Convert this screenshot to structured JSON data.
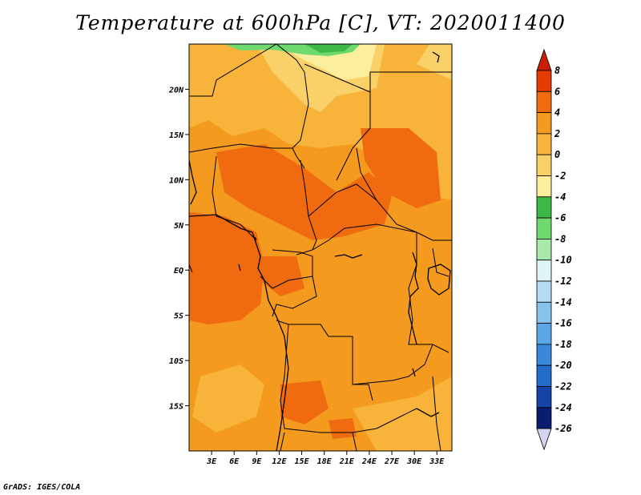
{
  "title": "Temperature at 600hPa [C], VT: 2020011400",
  "credit": "GrADS: IGES/COLA",
  "map": {
    "lon_range": [
      0,
      35
    ],
    "lat_range": [
      -20,
      25
    ],
    "lat_ticks": [
      {
        "value": 20,
        "label": "20N"
      },
      {
        "value": 15,
        "label": "15N"
      },
      {
        "value": 10,
        "label": "10N"
      },
      {
        "value": 5,
        "label": "5N"
      },
      {
        "value": 0,
        "label": "EQ"
      },
      {
        "value": -5,
        "label": "5S"
      },
      {
        "value": -10,
        "label": "10S"
      },
      {
        "value": -15,
        "label": "15S"
      }
    ],
    "lon_ticks": [
      {
        "value": 3,
        "label": "3E"
      },
      {
        "value": 6,
        "label": "6E"
      },
      {
        "value": 9,
        "label": "9E"
      },
      {
        "value": 12,
        "label": "12E"
      },
      {
        "value": 15,
        "label": "15E"
      },
      {
        "value": 18,
        "label": "18E"
      },
      {
        "value": 21,
        "label": "21E"
      },
      {
        "value": 24,
        "label": "24E"
      },
      {
        "value": 27,
        "label": "27E"
      },
      {
        "value": 30,
        "label": "30E"
      },
      {
        "value": 33,
        "label": "33E"
      }
    ]
  },
  "colorbar": {
    "levels": [
      "8",
      "6",
      "4",
      "2",
      "0",
      "-2",
      "-4",
      "-6",
      "-8",
      "-10",
      "-12",
      "-14",
      "-16",
      "-18",
      "-20",
      "-22",
      "-24",
      "-26"
    ],
    "colors": [
      "#c82000",
      "#e53a00",
      "#f06a10",
      "#f49a1e",
      "#f7b33a",
      "#fad068",
      "#fcee9c",
      "#3db846",
      "#6fd86f",
      "#a8e8a8",
      "#dff5f5",
      "#b4dcf2",
      "#88c2ec",
      "#5aa6e6",
      "#3a88dc",
      "#236ccc",
      "#1544a6",
      "#0a1c72",
      "#d4d4f0"
    ]
  }
}
